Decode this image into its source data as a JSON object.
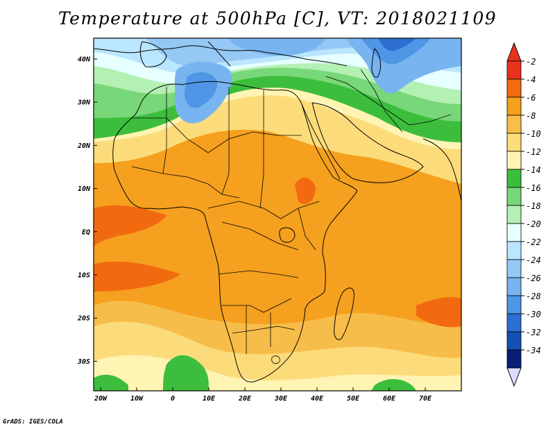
{
  "title": "Temperature at 500hPa [C], VT: 2018021109",
  "credit": "GrADS: IGES/COLA",
  "axes": {
    "lat_labels": [
      "40N",
      "30N",
      "20N",
      "10N",
      "EQ",
      "10S",
      "20S",
      "30S"
    ],
    "lon_labels": [
      "20W",
      "10W",
      "0",
      "10E",
      "20E",
      "30E",
      "40E",
      "50E",
      "60E",
      "70E"
    ]
  },
  "colorbar": {
    "labels": [
      "-2",
      "-4",
      "-6",
      "-8",
      "-10",
      "-12",
      "-14",
      "-16",
      "-18",
      "-20",
      "-22",
      "-24",
      "-26",
      "-28",
      "-30",
      "-32",
      "-34"
    ],
    "colors": [
      "#e8321e",
      "#f26a10",
      "#f5a01e",
      "#f7bd4a",
      "#fcdc7a",
      "#fff4b4",
      "#3cbe3c",
      "#78d778",
      "#b4f0b4",
      "#e6ffff",
      "#bae6ff",
      "#96c8f5",
      "#78b4f0",
      "#5096e6",
      "#2d6ed2",
      "#1450b4",
      "#0a1e78"
    ],
    "top_arrow_color": "#e8321e",
    "bottom_arrow_color": "#dcdcff"
  },
  "field_colors": {
    "orange": "#f5a01e",
    "orange_light": "#f7bd4a",
    "yellow": "#fcdc7a",
    "yellow_pale": "#fff4b4",
    "red_orange": "#f26a10",
    "green": "#3cbe3c",
    "green_mid": "#78d778",
    "green_light": "#b4f0b4",
    "cyan_pale": "#e6ffff",
    "blue_pale": "#bae6ff",
    "blue_light": "#96c8f5",
    "blue": "#78b4f0",
    "blue_mid": "#5096e6",
    "blue_dark": "#2d6ed2"
  }
}
